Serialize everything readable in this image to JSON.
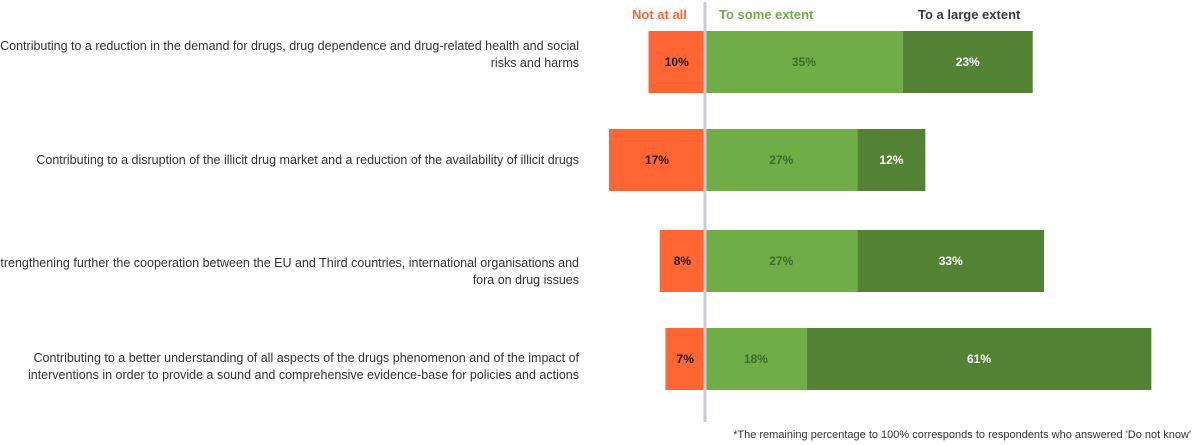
{
  "chart_data": {
    "type": "bar",
    "orientation": "horizontal",
    "stacked": "diverging",
    "categories": [
      "Contributing to a reduction in the demand for drugs, drug dependence and drug-related health and social risks and harms",
      "Contributing to a disruption of the illicit drug market and a reduction of the availability of illicit drugs",
      "Strengthening further the cooperation between the EU and Third countries, international organisations and fora on drug issues",
      "Contributing to a better understanding of all aspects of the drugs phenomenon and of the impact of interventions in order to provide a sound and comprehensive evidence-base for policies and actions"
    ],
    "series": [
      {
        "name": "Not at all",
        "values": [
          10,
          17,
          8,
          7
        ],
        "value_labels": [
          "10%",
          "17%",
          "8%",
          "7%"
        ],
        "color": "#ff6633",
        "direction": "negative"
      },
      {
        "name": "To some extent",
        "values": [
          35,
          27,
          27,
          18
        ],
        "value_labels": [
          "35%",
          "27%",
          "27%",
          "18%"
        ],
        "color": "#70ad47",
        "direction": "positive"
      },
      {
        "name": "To a large extent",
        "values": [
          23,
          12,
          33,
          61
        ],
        "value_labels": [
          "23%",
          "12%",
          "33%",
          "61%"
        ],
        "color": "#548235",
        "direction": "positive"
      }
    ],
    "legend_position": "top",
    "grid": false,
    "footnote": "*The remaining percentage to 100% corresponds to respondents who answered 'Do not know'"
  },
  "colors": {
    "not_at_all": "#ff6633",
    "some_extent": "#70ad47",
    "large_extent": "#548235",
    "some_extent_label": "#3d6b2a",
    "large_extent_label": "#ffffff",
    "not_at_all_label": "#1a1a1a",
    "axis_line": "#c8ccd4",
    "legend_some_text": "#70ad47",
    "legend_large_text": "#3a3a3a",
    "legend_not_text": "#ff6633"
  }
}
